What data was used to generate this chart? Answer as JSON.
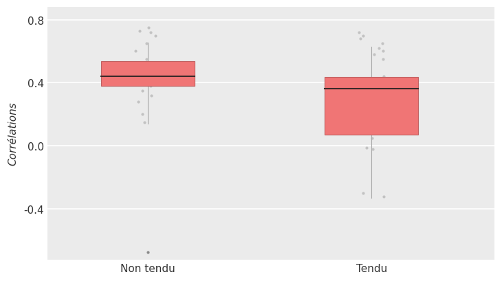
{
  "categories": [
    "Non tendu",
    "Tendu"
  ],
  "box_color": "#F07575",
  "box_edge_color": "#C06060",
  "median_color": "#3A2A2A",
  "whisker_color": "#AAAAAA",
  "point_color": "#BBBBBB",
  "outlier_color": "#888888",
  "ylabel": "Corrélations",
  "ylim": [
    -0.72,
    0.88
  ],
  "yticks": [
    -0.4,
    0.0,
    0.4,
    0.8
  ],
  "background_color": "#FFFFFF",
  "panel_bg": "#EBEBEB",
  "grid_color": "#FFFFFF",
  "non_tendu": {
    "q1": 0.38,
    "median": 0.44,
    "q3": 0.535,
    "whisker_low": 0.14,
    "whisker_high": 0.655,
    "outliers": [
      -0.67
    ],
    "jitter_points": [
      0.44,
      0.46,
      0.44,
      0.48,
      0.5,
      0.43,
      0.42,
      0.46,
      0.38,
      0.39,
      0.41,
      0.4,
      0.46,
      0.52,
      0.5,
      0.48,
      0.44,
      0.53,
      0.55,
      0.35,
      0.32,
      0.28,
      0.2,
      0.15,
      0.65,
      0.7,
      0.73,
      0.75,
      0.72,
      0.6
    ]
  },
  "tendu": {
    "q1": 0.07,
    "median": 0.365,
    "q3": 0.435,
    "whisker_low": -0.33,
    "whisker_high": 0.63,
    "outliers": [],
    "jitter_points": [
      0.4,
      0.39,
      0.38,
      0.42,
      0.44,
      0.43,
      0.38,
      0.37,
      0.4,
      0.36,
      0.35,
      0.3,
      0.25,
      0.2,
      0.15,
      0.12,
      0.08,
      0.05,
      -0.02,
      -0.3,
      -0.32,
      0.62,
      0.6,
      0.65,
      0.58,
      0.55,
      0.68,
      0.7,
      0.72,
      -0.01
    ]
  }
}
